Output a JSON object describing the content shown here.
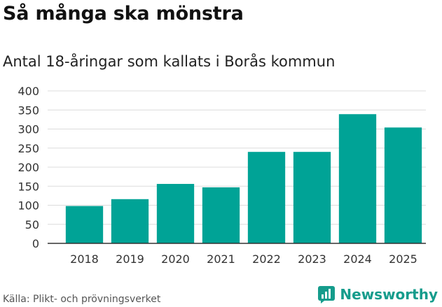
{
  "title": "Så många ska mönstra",
  "source": "Källa: Plikt- och prövningsverket",
  "brand": {
    "name": "Newsworthy",
    "icon": "newsworthy-logo-icon",
    "color": "#159c8c"
  },
  "chart_data": {
    "type": "bar",
    "title": "Antal 18-åringar som kallats i Borås kommun",
    "xlabel": "",
    "ylabel": "",
    "categories": [
      "2018",
      "2019",
      "2020",
      "2021",
      "2022",
      "2023",
      "2024",
      "2025"
    ],
    "values": [
      98,
      116,
      156,
      147,
      240,
      240,
      339,
      304
    ],
    "ylim": [
      0,
      400
    ],
    "yticks": [
      0,
      50,
      100,
      150,
      200,
      250,
      300,
      350,
      400
    ],
    "grid": true,
    "legend": "none",
    "bar_color": "#00a396"
  }
}
